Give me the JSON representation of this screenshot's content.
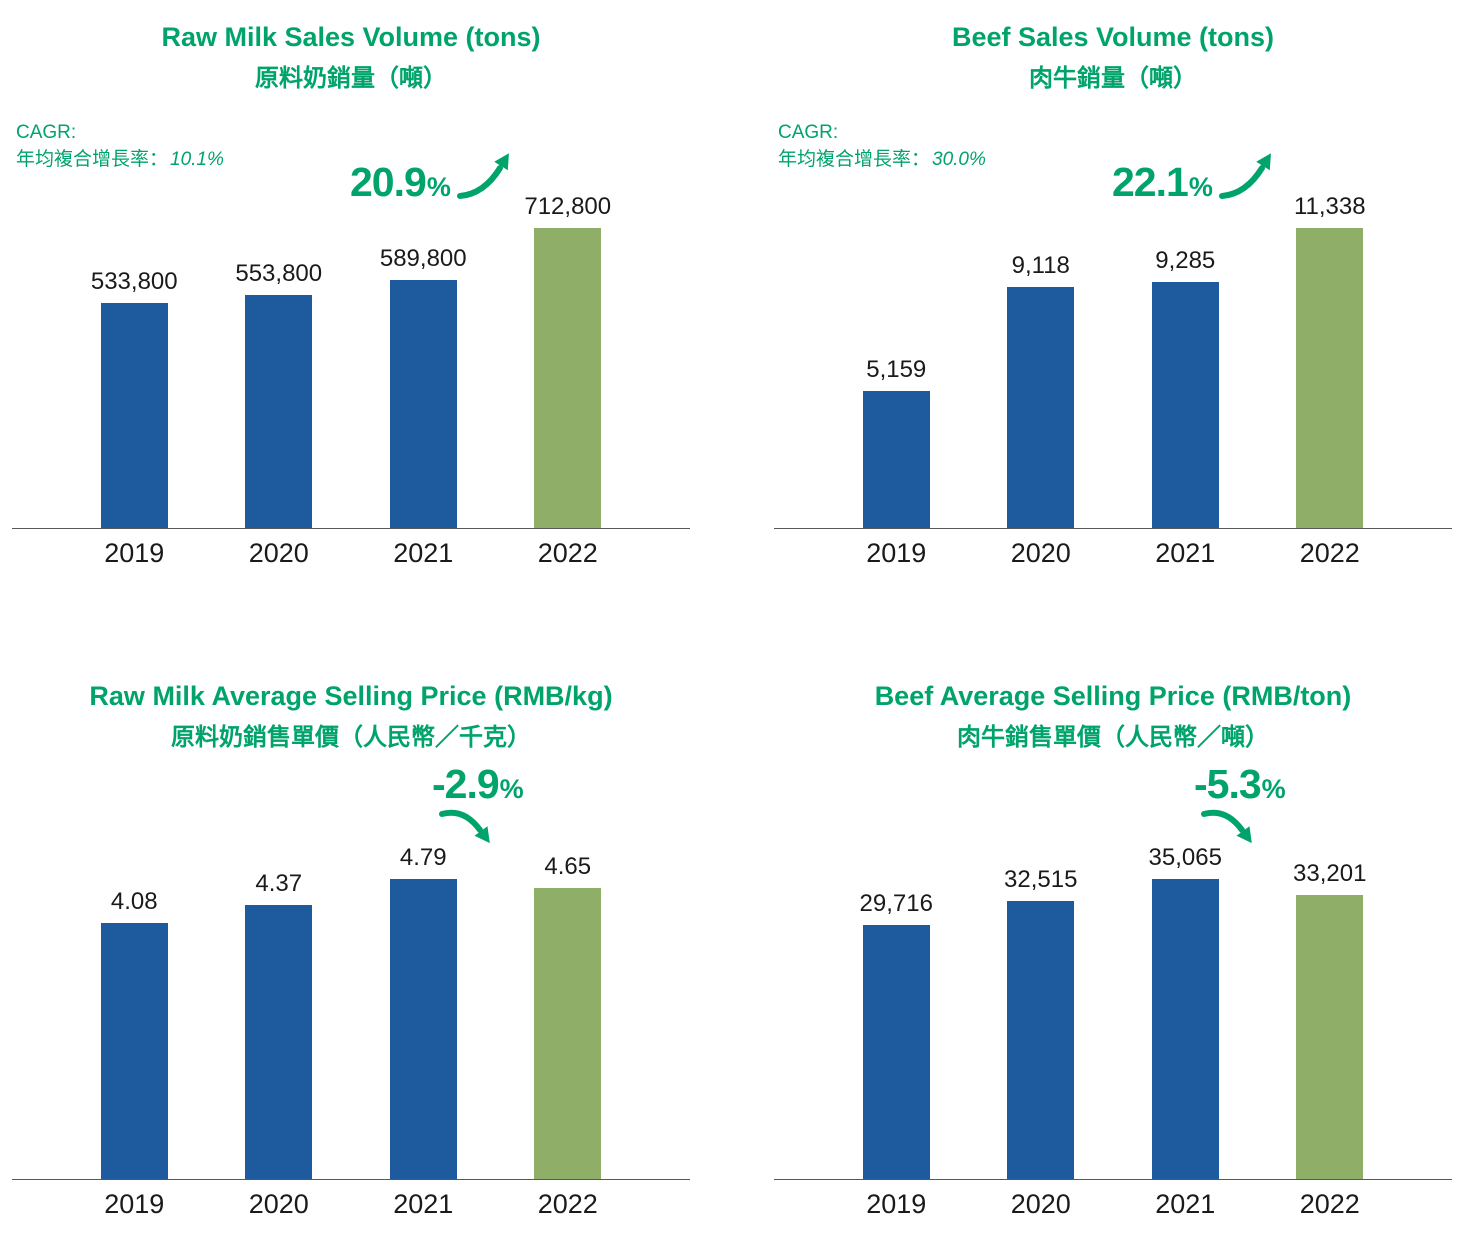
{
  "colors": {
    "accent_green": "#00A46B",
    "bar_blue": "#1E5B9E",
    "bar_green": "#8FAE68",
    "label_dark": "#1a1a1a"
  },
  "chart_data": [
    {
      "id": "raw-milk-sales-volume",
      "type": "bar",
      "title": "Raw Milk Sales Volume (tons)",
      "subtitle_zh": "原料奶銷量（噸）",
      "cagr": {
        "label": "CAGR:",
        "text_zh": "年均複合增長率：",
        "value": "10.1%"
      },
      "growth": {
        "value": "20.9",
        "unit": "%",
        "direction": "up"
      },
      "categories": [
        "2019",
        "2020",
        "2021",
        "2022"
      ],
      "values": [
        533800,
        553800,
        589800,
        712800
      ],
      "value_labels": [
        "533,800",
        "553,800",
        "589,800",
        "712,800"
      ],
      "highlight_index": 3,
      "ylim": [
        0,
        712800
      ],
      "legend": "none",
      "grid": false
    },
    {
      "id": "beef-sales-volume",
      "type": "bar",
      "title": "Beef Sales Volume (tons)",
      "subtitle_zh": "肉牛銷量（噸）",
      "cagr": {
        "label": "CAGR:",
        "text_zh": "年均複合增長率：",
        "value": "30.0%"
      },
      "growth": {
        "value": "22.1",
        "unit": "%",
        "direction": "up"
      },
      "categories": [
        "2019",
        "2020",
        "2021",
        "2022"
      ],
      "values": [
        5159,
        9118,
        9285,
        11338
      ],
      "value_labels": [
        "5,159",
        "9,118",
        "9,285",
        "11,338"
      ],
      "highlight_index": 3,
      "ylim": [
        0,
        11338
      ],
      "legend": "none",
      "grid": false
    },
    {
      "id": "raw-milk-average-selling-price",
      "type": "bar",
      "title": "Raw Milk Average Selling Price (RMB/kg)",
      "subtitle_zh": "原料奶銷售單價（人民幣／千克）",
      "growth": {
        "value": "-2.9",
        "unit": "%",
        "direction": "down"
      },
      "categories": [
        "2019",
        "2020",
        "2021",
        "2022"
      ],
      "values": [
        4.08,
        4.37,
        4.79,
        4.65
      ],
      "value_labels": [
        "4.08",
        "4.37",
        "4.79",
        "4.65"
      ],
      "highlight_index": 3,
      "ylim": [
        0,
        4.79
      ],
      "legend": "none",
      "grid": false
    },
    {
      "id": "beef-average-selling-price",
      "type": "bar",
      "title": "Beef Average Selling Price (RMB/ton)",
      "subtitle_zh": "肉牛銷售單價（人民幣／噸）",
      "growth": {
        "value": "-5.3",
        "unit": "%",
        "direction": "down"
      },
      "categories": [
        "2019",
        "2020",
        "2021",
        "2022"
      ],
      "values": [
        29716,
        32515,
        35065,
        33201
      ],
      "value_labels": [
        "29,716",
        "32,515",
        "35,065",
        "33,201"
      ],
      "highlight_index": 3,
      "ylim": [
        0,
        35065
      ],
      "legend": "none",
      "grid": false
    }
  ]
}
